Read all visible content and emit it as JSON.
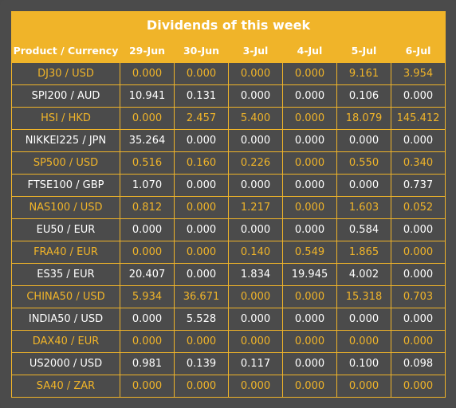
{
  "table": {
    "title": "Dividends of this week",
    "headers": [
      "Product / Currency",
      "29-Jun",
      "30-Jun",
      "3-Jul",
      "4-Jul",
      "5-Jul",
      "6-Jul"
    ],
    "rows": [
      [
        "DJ30 / USD",
        "0.000",
        "0.000",
        "0.000",
        "0.000",
        "9.161",
        "3.954"
      ],
      [
        "SPI200 / AUD",
        "10.941",
        "0.131",
        "0.000",
        "0.000",
        "0.106",
        "0.000"
      ],
      [
        "HSI / HKD",
        "0.000",
        "2.457",
        "5.400",
        "0.000",
        "18.079",
        "145.412"
      ],
      [
        "NIKKEI225 / JPN",
        "35.264",
        "0.000",
        "0.000",
        "0.000",
        "0.000",
        "0.000"
      ],
      [
        "SP500 / USD",
        "0.516",
        "0.160",
        "0.226",
        "0.000",
        "0.550",
        "0.340"
      ],
      [
        "FTSE100 / GBP",
        "1.070",
        "0.000",
        "0.000",
        "0.000",
        "0.000",
        "0.737"
      ],
      [
        "NAS100 / USD",
        "0.812",
        "0.000",
        "1.217",
        "0.000",
        "1.603",
        "0.052"
      ],
      [
        "EU50 / EUR",
        "0.000",
        "0.000",
        "0.000",
        "0.000",
        "0.584",
        "0.000"
      ],
      [
        "FRA40 / EUR",
        "0.000",
        "0.000",
        "0.140",
        "0.549",
        "1.865",
        "0.000"
      ],
      [
        "ES35 / EUR",
        "20.407",
        "0.000",
        "1.834",
        "19.945",
        "4.002",
        "0.000"
      ],
      [
        "CHINA50 / USD",
        "5.934",
        "36.671",
        "0.000",
        "0.000",
        "15.318",
        "0.703"
      ],
      [
        "INDIA50 / USD",
        "0.000",
        "5.528",
        "0.000",
        "0.000",
        "0.000",
        "0.000"
      ],
      [
        "DAX40 / EUR",
        "0.000",
        "0.000",
        "0.000",
        "0.000",
        "0.000",
        "0.000"
      ],
      [
        "US2000 / USD",
        "0.981",
        "0.139",
        "0.117",
        "0.000",
        "0.100",
        "0.098"
      ],
      [
        "SA40 / ZAR",
        "0.000",
        "0.000",
        "0.000",
        "0.000",
        "0.000",
        "0.000"
      ]
    ]
  },
  "colors": {
    "accent": "#f0b429",
    "background": "#4b4b4b",
    "text_light": "#ffffff"
  }
}
